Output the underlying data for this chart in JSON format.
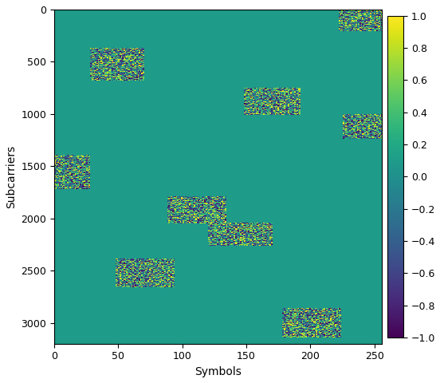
{
  "title": "",
  "xlabel": "Symbols",
  "ylabel": "Subcarriers",
  "colormap": "viridis",
  "clim": [
    -1,
    1
  ],
  "grid_rows": 3200,
  "grid_cols": 256,
  "bg_value": 0.1,
  "colorbar_ticks": [
    1,
    0.8,
    0.6,
    0.4,
    0.2,
    0,
    -0.2,
    -0.4,
    -0.6,
    -0.8,
    -1
  ],
  "xticks": [
    0,
    50,
    100,
    150,
    200,
    250
  ],
  "yticks": [
    0,
    500,
    1000,
    1500,
    2000,
    2500,
    3000
  ],
  "patches": [
    {
      "c0": 222,
      "r0": 0,
      "cw": 34,
      "rh": 210
    },
    {
      "c0": 28,
      "r0": 370,
      "cw": 42,
      "rh": 310
    },
    {
      "c0": 148,
      "r0": 750,
      "cw": 44,
      "rh": 260
    },
    {
      "c0": 225,
      "r0": 1000,
      "cw": 31,
      "rh": 240
    },
    {
      "c0": 0,
      "r0": 1390,
      "cw": 28,
      "rh": 330
    },
    {
      "c0": 88,
      "r0": 1790,
      "cw": 46,
      "rh": 260
    },
    {
      "c0": 120,
      "r0": 2040,
      "cw": 50,
      "rh": 220
    },
    {
      "c0": 48,
      "r0": 2380,
      "cw": 46,
      "rh": 280
    },
    {
      "c0": 178,
      "r0": 2860,
      "cw": 46,
      "rh": 280
    }
  ],
  "figsize": [
    5.52,
    4.8
  ],
  "dpi": 100
}
